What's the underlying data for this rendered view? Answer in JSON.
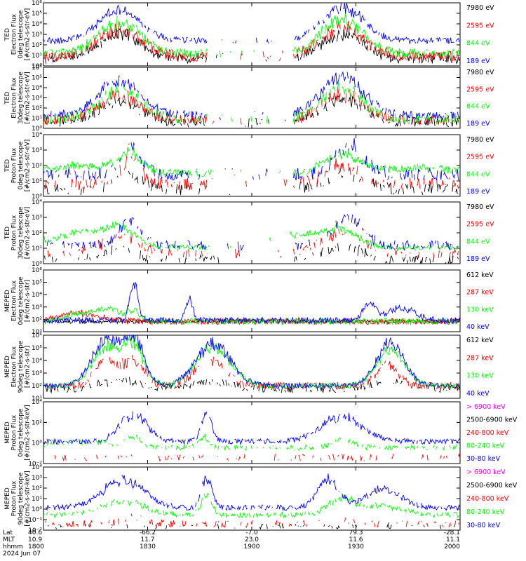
{
  "figure": {
    "footer": {
      "row_labels": [
        "Lat",
        "MLT",
        "hhmm",
        "2024 Jun 07"
      ],
      "columns": [
        {
          "lat": "40.6",
          "mlt": "10.9",
          "hhmm": "1800"
        },
        {
          "lat": "-66.2",
          "mlt": "11.7",
          "hhmm": "1830"
        },
        {
          "lat": "-7.0",
          "mlt": "23.0",
          "hhmm": "1900"
        },
        {
          "lat": "79.3",
          "mlt": "11.6",
          "hhmm": "1930"
        },
        {
          "lat": "-28.1",
          "mlt": "11.1",
          "hhmm": "2000"
        }
      ]
    },
    "colors": {
      "blue": "#0000ff",
      "red": "#ff0000",
      "green": "#00ff00",
      "black": "#000000",
      "magenta": "#ff00ff"
    }
  },
  "chart_data": [
    {
      "type": "line",
      "ylog": true,
      "ylim": [
        1,
        1000000
      ],
      "ylabel": [
        "TED",
        "Electron Flux",
        "0deg telescope",
        "[#/cm2-s-str-eV]"
      ],
      "yticks": [
        "10⁰",
        "10¹",
        "10²",
        "10³",
        "10⁴",
        "10⁵",
        "10⁶"
      ],
      "xlim": [
        1800,
        2000
      ],
      "xticks": [
        1800,
        1830,
        1900,
        1930,
        2000
      ],
      "series": [
        {
          "name": "7980 eV",
          "color": "#000000",
          "base": 0.7,
          "noise": 0.5,
          "peaks": [
            [
              1822,
              6,
              2.3
            ],
            [
              1926,
              6,
              2.3
            ]
          ],
          "drop": 0.15
        },
        {
          "name": "2595 eV",
          "color": "#ff0000",
          "base": 0.9,
          "noise": 0.5,
          "peaks": [
            [
              1822,
              6,
              2.6
            ],
            [
              1926,
              6,
              2.8
            ]
          ],
          "drop": 0.1
        },
        {
          "name": "844 eV",
          "color": "#00ff00",
          "base": 1.2,
          "noise": 0.4,
          "peaks": [
            [
              1822,
              6,
              3.0
            ],
            [
              1926,
              6,
              3.2
            ]
          ],
          "drop": 0.05
        },
        {
          "name": "189 eV",
          "color": "#0000ff",
          "base": 2.4,
          "noise": 0.3,
          "peaks": [
            [
              1822,
              6,
              2.8
            ],
            [
              1926,
              6,
              3.2
            ]
          ],
          "drop": 0.08
        }
      ]
    },
    {
      "type": "line",
      "ylog": true,
      "ylim": [
        1,
        1000000
      ],
      "ylabel": [
        "TED",
        "Electron Flux",
        "30deg telescope",
        "[#/cm2-s-str-eV]"
      ],
      "yticks": [
        "10⁰",
        "10¹",
        "10²",
        "10³",
        "10⁴",
        "10⁵",
        "10⁶"
      ],
      "xlim": [
        1800,
        2000
      ],
      "xticks": [
        1800,
        1830,
        1900,
        1930,
        2000
      ],
      "series": [
        {
          "name": "7980 eV",
          "color": "#000000",
          "base": 0.6,
          "noise": 0.5,
          "peaks": [
            [
              1822,
              6,
              2.0
            ],
            [
              1926,
              6,
              2.2
            ]
          ],
          "drop": 0.25
        },
        {
          "name": "2595 eV",
          "color": "#ff0000",
          "base": 0.8,
          "noise": 0.5,
          "peaks": [
            [
              1822,
              6,
              2.4
            ],
            [
              1926,
              6,
              2.6
            ]
          ],
          "drop": 0.2
        },
        {
          "name": "844 eV",
          "color": "#00ff00",
          "base": 0.9,
          "noise": 0.5,
          "peaks": [
            [
              1822,
              6,
              2.8
            ],
            [
              1926,
              6,
              3.0
            ]
          ],
          "drop": 0.2
        },
        {
          "name": "189 eV",
          "color": "#0000ff",
          "base": 1.3,
          "noise": 0.4,
          "peaks": [
            [
              1822,
              6,
              3.3
            ],
            [
              1926,
              6,
              3.8
            ]
          ],
          "drop": 0.15
        }
      ]
    },
    {
      "type": "line",
      "ylog": true,
      "ylim": [
        1,
        100000
      ],
      "ylabel": [
        "TED",
        "Proton Flux",
        "0deg telescope",
        "[#/cm2-s-str-eV]"
      ],
      "yticks": [
        "10⁰",
        "10¹",
        "10²",
        "10³",
        "10⁴"
      ],
      "xlim": [
        1800,
        2000
      ],
      "xticks": [
        1800,
        1830,
        1900,
        1930,
        2000
      ],
      "series": [
        {
          "name": "7980 eV",
          "color": "#000000",
          "base": 0.6,
          "noise": 0.5,
          "peaks": [
            [
              1825,
              4,
              1.0
            ],
            [
              1926,
              6,
              1.0
            ]
          ],
          "drop": 0.4
        },
        {
          "name": "2595 eV",
          "color": "#ff0000",
          "base": 1.0,
          "noise": 0.5,
          "peaks": [
            [
              1825,
              3,
              1.8
            ],
            [
              1926,
              5,
              1.5
            ]
          ],
          "drop": 0.35
        },
        {
          "name": "844 eV",
          "color": "#00ff00",
          "base": 1.9,
          "noise": 0.3,
          "peaks": [
            [
              1812,
              10,
              0.6
            ],
            [
              1825,
              3,
              1.5
            ],
            [
              1926,
              5,
              1.5
            ],
            [
              1948,
              10,
              0.4
            ]
          ],
          "drop": 0.05
        },
        {
          "name": "189 eV",
          "color": "#0000ff",
          "base": 1.8,
          "noise": 0.5,
          "peaks": [
            [
              1825,
              3,
              2.2
            ],
            [
              1928,
              4,
              2.3
            ]
          ],
          "drop": 0.3
        }
      ]
    },
    {
      "type": "line",
      "ylog": true,
      "ylim": [
        1,
        100000
      ],
      "ylabel": [
        "TED",
        "Proton Flux",
        "30deg telescope",
        "[#/cm2-s-str-eV]"
      ],
      "yticks": [
        "10⁰",
        "10¹",
        "10²",
        "10³",
        "10⁴"
      ],
      "xlim": [
        1800,
        2000
      ],
      "xticks": [
        1800,
        1830,
        1900,
        1930,
        2000
      ],
      "series": [
        {
          "name": "7980 eV",
          "color": "#000000",
          "base": 0.3,
          "noise": 0.4,
          "peaks": [
            [
              1822,
              5,
              0.9
            ],
            [
              1926,
              6,
              1.1
            ]
          ],
          "drop": 0.45
        },
        {
          "name": "2595 eV",
          "color": "#ff0000",
          "base": 0.8,
          "noise": 0.4,
          "peaks": [
            [
              1822,
              5,
              1.4
            ],
            [
              1926,
              6,
              1.6
            ]
          ],
          "drop": 0.45
        },
        {
          "name": "844 eV",
          "color": "#00ff00",
          "base": 1.3,
          "noise": 0.2,
          "peaks": [
            [
              1812,
              10,
              1.2
            ],
            [
              1822,
              4,
              1.0
            ],
            [
              1926,
              5,
              1.2
            ],
            [
              1913,
              8,
              1.0
            ],
            [
              1988,
              12,
              1.0
            ]
          ],
          "drop": 0.05
        },
        {
          "name": "189 eV",
          "color": "#0000ff",
          "base": 1.5,
          "noise": 0.4,
          "peaks": [
            [
              1825,
              3,
              2.0
            ],
            [
              1928,
              4,
              2.3
            ]
          ],
          "drop": 0.3
        }
      ]
    },
    {
      "type": "line",
      "ylog": true,
      "ylim": [
        10,
        10000000
      ],
      "ylabel": [
        "MEPED",
        "Electron Flux",
        "0deg telescope",
        "[#/cm2-s-str]"
      ],
      "yticks": [
        "10¹",
        "10²",
        "10³",
        "10⁴",
        "10⁵",
        "10⁶"
      ],
      "xlim": [
        1800,
        2000
      ],
      "xticks": [
        1800,
        1830,
        1900,
        1930,
        2000
      ],
      "series": [
        {
          "name": "612 keV",
          "color": "#000000",
          "base": 2.0,
          "noise": 0.2,
          "peaks": [],
          "drop": 0.0
        },
        {
          "name": "287 keV",
          "color": "#ff0000",
          "base": 2.0,
          "noise": 0.3,
          "peaks": [
            [
              1810,
              6,
              0.8
            ]
          ],
          "drop": 0.0
        },
        {
          "name": "130 keV",
          "color": "#00ff00",
          "base": 2.0,
          "noise": 0.3,
          "peaks": [
            [
              1812,
              6,
              0.8
            ],
            [
              1819,
              3,
              0.8
            ],
            [
              1826,
              2,
              1.0
            ]
          ],
          "drop": 0.0
        },
        {
          "name": "40 keV",
          "color": "#0000ff",
          "base": 2.1,
          "noise": 0.3,
          "peaks": [
            [
              1826,
              1.2,
              3.6
            ],
            [
              1842,
              1,
              2.3
            ],
            [
              1943,
              4,
              1.2
            ],
            [
              1934,
              2,
              1.5
            ]
          ],
          "drop": 0.0
        }
      ]
    },
    {
      "type": "line",
      "ylog": true,
      "ylim": [
        10,
        1000000
      ],
      "ylabel": [
        "MEPED",
        "Electron Flux",
        "90deg telescope",
        "[#/cm2-s-str]"
      ],
      "yticks": [
        "10¹",
        "10²",
        "10³",
        "10⁴",
        "10⁵",
        "10⁶"
      ],
      "xlim": [
        1800,
        2000
      ],
      "xticks": [
        1800,
        1830,
        1900,
        1930,
        2000
      ],
      "series": [
        {
          "name": "612 keV",
          "color": "#000000",
          "base": 1.7,
          "noise": 0.3,
          "peaks": [
            [
              1822,
              6,
              0.7
            ],
            [
              1848,
              6,
              0.6
            ],
            [
              1941,
              6,
              0.7
            ],
            [
              1980,
              6,
              0.7
            ]
          ],
          "drop": 0.3
        },
        {
          "name": "287 keV",
          "color": "#ff0000",
          "base": 2.0,
          "noise": 0.3,
          "peaks": [
            [
              1818,
              3,
              2.0
            ],
            [
              1826,
              3,
              2.0
            ],
            [
              1848,
              4,
              2.2
            ],
            [
              1939,
              3,
              1.8
            ],
            [
              1973,
              3,
              2.2
            ],
            [
              1980,
              3,
              2.2
            ]
          ],
          "drop": 0.2
        },
        {
          "name": "130 keV",
          "color": "#00ff00",
          "base": 2.0,
          "noise": 0.2,
          "peaks": [
            [
              1818,
              4,
              3.0
            ],
            [
              1826,
              3,
              3.0
            ],
            [
              1849,
              5,
              3.0
            ],
            [
              1940,
              4,
              2.8
            ],
            [
              1975,
              4,
              3.0
            ],
            [
              1981,
              3,
              3.0
            ]
          ],
          "drop": 0.0
        },
        {
          "name": "40 keV",
          "color": "#0000ff",
          "base": 2.0,
          "noise": 0.2,
          "peaks": [
            [
              1818,
              4,
              3.5
            ],
            [
              1826,
              3,
              3.6
            ],
            [
              1849,
              5,
              3.3
            ],
            [
              1940,
              4,
              3.3
            ],
            [
              1976,
              4,
              3.3
            ],
            [
              1982,
              3,
              3.4
            ]
          ],
          "drop": 0.0
        }
      ]
    },
    {
      "type": "line",
      "ylog": true,
      "ylim": [
        0.01,
        100000
      ],
      "ylabel": [
        "MEPED",
        "Proton Flux",
        "0deg telescope",
        "[#/cm2-s-str-keV]"
      ],
      "yticks": [
        "10⁻²",
        "10⁰",
        "10²",
        "10⁴"
      ],
      "xlim": [
        1800,
        2000
      ],
      "xticks": [
        1800,
        1830,
        1900,
        1930,
        2000
      ],
      "series": [
        {
          "name": "> 6900 keV",
          "color": "#ff00ff",
          "base": -3,
          "noise": 0,
          "peaks": [],
          "drop": 1.0
        },
        {
          "name": "2500-6900 keV",
          "color": "#000000",
          "base": -3,
          "noise": 0,
          "peaks": [],
          "drop": 1.0
        },
        {
          "name": "240-800 keV",
          "color": "#ff0000",
          "base": -1.3,
          "noise": 0.4,
          "peaks": [],
          "drop": 0.6
        },
        {
          "name": "80-240 keV",
          "color": "#00ff00",
          "base": -0.2,
          "noise": 0.3,
          "peaks": [
            [
              1812,
              10,
              0.6
            ],
            [
              1826,
              2,
              1.0
            ],
            [
              1846,
              1.5,
              1.2
            ],
            [
              1926,
              3,
              1.0
            ],
            [
              1984,
              8,
              0.4
            ]
          ],
          "drop": 0.3
        },
        {
          "name": "30-80 keV",
          "color": "#0000ff",
          "base": 0.5,
          "noise": 0.3,
          "peaks": [
            [
              1826,
              4,
              3.0
            ],
            [
              1847,
              1.5,
              3.2
            ],
            [
              1926,
              6,
              2.8
            ]
          ],
          "drop": 0.1
        }
      ]
    },
    {
      "type": "line",
      "ylog": true,
      "ylim": [
        0.01,
        100000
      ],
      "ylabel": [
        "MEPED",
        "Proton Flux",
        "90deg telescope",
        "[#/cm2-s-str-keV]"
      ],
      "yticks": [
        "10⁻²",
        "10⁻¹",
        "10⁰",
        "10¹",
        "10²",
        "10³",
        "10⁴"
      ],
      "xlim": [
        1800,
        2000
      ],
      "xticks": [
        1800,
        1830,
        1900,
        1930,
        2000
      ],
      "series": [
        {
          "name": "> 6900 keV",
          "color": "#ff00ff",
          "base": -3,
          "noise": 0,
          "peaks": [],
          "drop": 1.0
        },
        {
          "name": "2500-6900 keV",
          "color": "#000000",
          "base": -1.6,
          "noise": 0.3,
          "peaks": [],
          "drop": 0.7
        },
        {
          "name": "240-800 keV",
          "color": "#ff0000",
          "base": -1.3,
          "noise": 0.4,
          "peaks": [
            [
              1826,
              3,
              0.8
            ],
            [
              1925,
              3,
              0.6
            ]
          ],
          "drop": 0.5
        },
        {
          "name": "80-240 keV",
          "color": "#00ff00",
          "base": -0.3,
          "noise": 0.3,
          "peaks": [
            [
              1823,
              6,
              1.5
            ],
            [
              1847,
              1.5,
              2.2
            ],
            [
              1926,
              4,
              1.8
            ],
            [
              1938,
              5,
              1.0
            ]
          ],
          "drop": 0.2
        },
        {
          "name": "30-80 keV",
          "color": "#0000ff",
          "base": 0.5,
          "noise": 0.3,
          "peaks": [
            [
              1823,
              6,
              3.0
            ],
            [
              1847,
              1.5,
              3.2
            ],
            [
              1922,
              3,
              3.2
            ],
            [
              1938,
              5,
              2.0
            ]
          ],
          "drop": 0.1
        }
      ]
    }
  ]
}
